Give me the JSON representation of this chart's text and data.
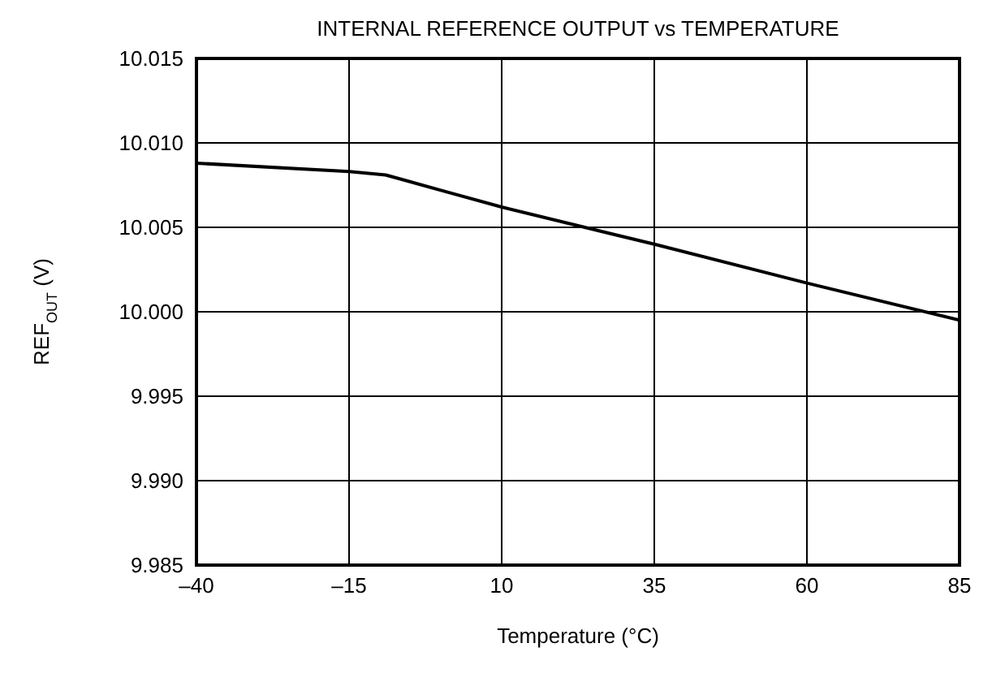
{
  "chart_data": {
    "type": "line",
    "title": "INTERNAL REFERENCE OUTPUT vs TEMPERATURE",
    "xlabel": "Temperature (°C)",
    "ylabel": "REF$_{OUT}$ (V)",
    "x": [
      -40,
      -15,
      -9,
      1,
      10,
      35,
      60,
      85
    ],
    "series": [
      {
        "color": "#000000",
        "values": [
          10.0088,
          10.0083,
          10.0081,
          10.0071,
          10.0062,
          10.004,
          10.0017,
          9.9995
        ]
      }
    ],
    "xlim": [
      -40,
      85
    ],
    "xticks": [
      {
        "value": -40,
        "label": "–40"
      },
      {
        "value": -15,
        "label": "–15"
      },
      10,
      35,
      60,
      85
    ],
    "ylim": [
      9.985,
      10.015
    ],
    "yticks": [
      {
        "value": 9.985,
        "label": "9.985"
      },
      {
        "value": 9.99,
        "label": "9.990"
      },
      {
        "value": 9.995,
        "label": "9.995"
      },
      {
        "value": 10,
        "label": "10.000"
      },
      {
        "value": 10.005,
        "label": "10.005"
      },
      {
        "value": 10.01,
        "label": "10.010"
      },
      {
        "value": 10.015,
        "label": "10.015"
      }
    ],
    "grid": true,
    "legend": false,
    "marker": "none",
    "line_style": "solid"
  }
}
